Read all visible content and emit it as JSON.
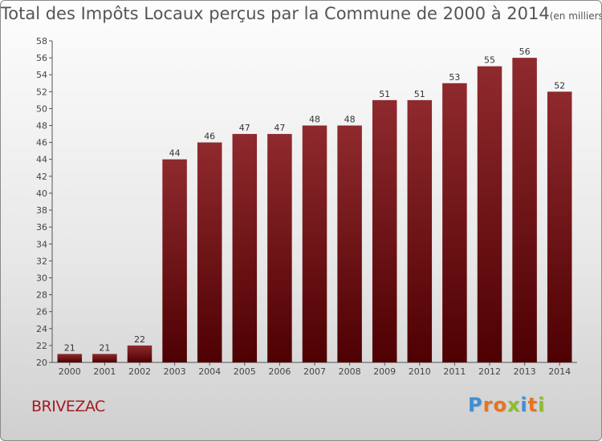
{
  "title": {
    "main": "Total des Impôts Locaux perçus par la Commune de 2000 à 2014",
    "unit": "(en milliers d'€)"
  },
  "commune": "BRIVEZAC",
  "logo": {
    "letters": [
      "P",
      "r",
      "o",
      "x",
      "i",
      "t",
      "i"
    ],
    "colors": [
      "#3d8fd6",
      "#e8731e",
      "#e8731e",
      "#8bbf2a",
      "#3d8fd6",
      "#e8731e",
      "#8bbf2a"
    ]
  },
  "chart_data": {
    "type": "bar",
    "categories": [
      "2000",
      "2001",
      "2002",
      "2003",
      "2004",
      "2005",
      "2006",
      "2007",
      "2008",
      "2009",
      "2010",
      "2011",
      "2012",
      "2013",
      "2014"
    ],
    "values": [
      21,
      21,
      22,
      44,
      46,
      47,
      47,
      48,
      48,
      51,
      51,
      53,
      55,
      56,
      52
    ],
    "ylim": [
      20,
      58
    ],
    "yticks": [
      20,
      22,
      24,
      26,
      28,
      30,
      32,
      34,
      36,
      38,
      40,
      42,
      44,
      46,
      48,
      50,
      52,
      54,
      56,
      58
    ],
    "grid": false,
    "bar_color": "#7a1416"
  }
}
